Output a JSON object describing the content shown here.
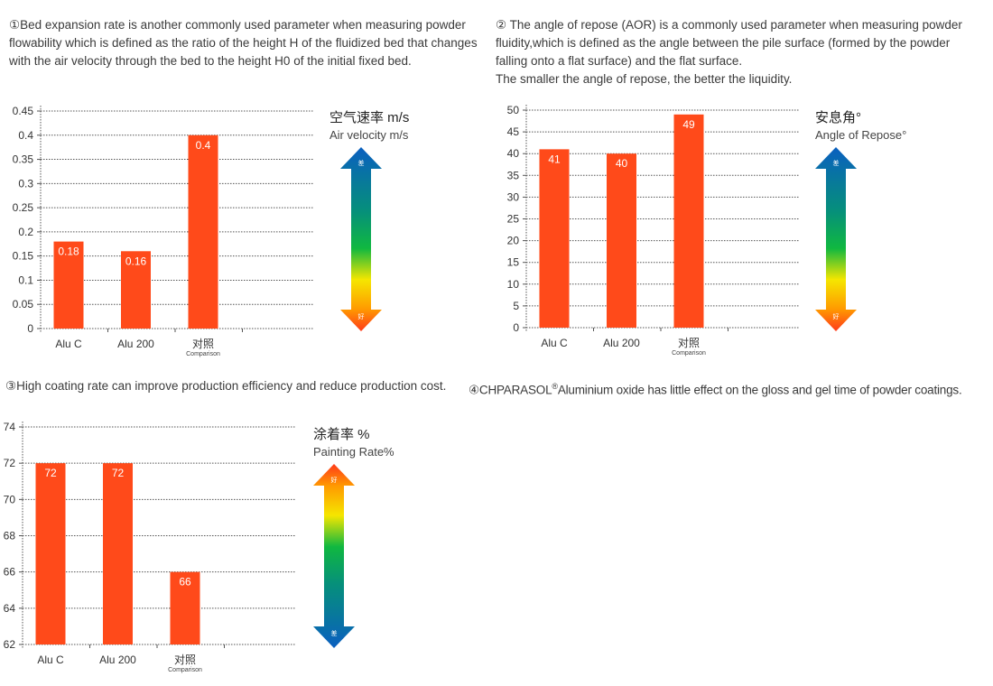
{
  "sections": [
    {
      "heading": "①Bed expansion rate is another commonly used parameter when measuring powder flowability which is defined as the ratio of the height H of the fluidized bed that changes with the air velocity through the bed to the height H0 of the initial fixed bed."
    },
    {
      "heading": "② The angle of repose (AOR) is a commonly used parameter when measuring powder fluidity,which is defined as the angle between the pile surface (formed by the powder falling onto a flat surface) and the flat surface.",
      "heading2": "The smaller the angle of repose, the better the liquidity."
    },
    {
      "heading": "③High coating rate can improve production efficiency and reduce production cost."
    },
    {
      "heading_prefix": "④CHPARASOL",
      "heading_mark": "®",
      "heading_rest": "Aluminium oxide has little effect on the gloss and gel time of powder coatings."
    }
  ],
  "colors": {
    "bar": "#ff4a1a",
    "grid": "#555555",
    "arrow_good": "#ff3a1a",
    "arrow_bad": "#0a5fc0"
  },
  "chart_data": [
    {
      "type": "bar",
      "categories": [
        "Alu C",
        "Alu 200",
        "对照"
      ],
      "category_sublabels": [
        "",
        "",
        "Comparison"
      ],
      "values": [
        0.18,
        0.16,
        0.4
      ],
      "data_labels": [
        "0.18",
        "0.16",
        "0.4"
      ],
      "ylim": [
        0,
        0.45
      ],
      "yticks": [
        "0",
        "0.05",
        "0.1",
        "0.15",
        "0.2",
        "0.25",
        "0.3",
        "0.35",
        "0.4",
        "0.45"
      ],
      "grid": true,
      "legend_title_zh": "空气速率 m/s",
      "legend_title_en": "Air velocity m/s",
      "arrow_top_label": "差",
      "arrow_bottom_label": "好",
      "arrow_direction": "good-at-bottom"
    },
    {
      "type": "bar",
      "categories": [
        "Alu C",
        "Alu 200",
        "对照"
      ],
      "category_sublabels": [
        "",
        "",
        "Comparison"
      ],
      "values": [
        41,
        40,
        49
      ],
      "data_labels": [
        "41",
        "40",
        "49"
      ],
      "ylim": [
        0,
        50
      ],
      "yticks": [
        "0",
        "5",
        "10",
        "15",
        "20",
        "25",
        "30",
        "35",
        "40",
        "45",
        "50"
      ],
      "grid": true,
      "legend_title_zh": "安息角°",
      "legend_title_en": "Angle of Repose°",
      "arrow_top_label": "差",
      "arrow_bottom_label": "好",
      "arrow_direction": "good-at-bottom"
    },
    {
      "type": "bar",
      "categories": [
        "Alu C",
        "Alu 200",
        "对照"
      ],
      "category_sublabels": [
        "",
        "",
        "Comparison"
      ],
      "values": [
        72,
        72,
        66
      ],
      "data_labels": [
        "72",
        "72",
        "66"
      ],
      "ylim": [
        62,
        74
      ],
      "yticks": [
        "62",
        "64",
        "66",
        "68",
        "70",
        "72",
        "74"
      ],
      "grid": true,
      "legend_title_zh": "涂着率 %",
      "legend_title_en": "Painting Rate%",
      "arrow_top_label": "好",
      "arrow_bottom_label": "差",
      "arrow_direction": "good-at-top"
    }
  ]
}
